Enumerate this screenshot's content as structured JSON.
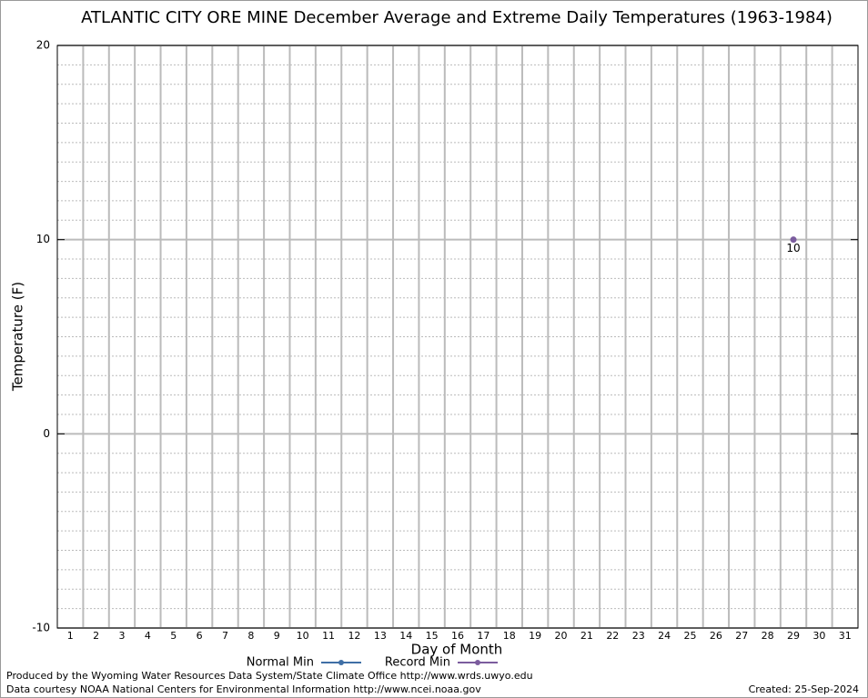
{
  "chart_data": {
    "type": "line",
    "title": "ATLANTIC CITY ORE MINE December Average and Extreme Daily Temperatures (1963-1984)",
    "x_label": "Day of Month",
    "y_label": "Temperature (F)",
    "categories": [
      "1",
      "2",
      "3",
      "4",
      "5",
      "6",
      "7",
      "8",
      "9",
      "10",
      "11",
      "12",
      "13",
      "14",
      "15",
      "16",
      "17",
      "18",
      "19",
      "20",
      "21",
      "22",
      "23",
      "24",
      "25",
      "26",
      "27",
      "28",
      "29",
      "30",
      "31"
    ],
    "series": [
      {
        "name": "Normal Min",
        "color": "#3f6fa6",
        "values": [
          null,
          null,
          null,
          null,
          null,
          null,
          null,
          null,
          null,
          null,
          null,
          null,
          null,
          null,
          null,
          null,
          null,
          null,
          null,
          null,
          null,
          null,
          null,
          null,
          null,
          null,
          null,
          null,
          null,
          null,
          null
        ]
      },
      {
        "name": "Record Min",
        "color": "#7b5c9e",
        "values": [
          null,
          null,
          null,
          null,
          null,
          null,
          null,
          null,
          null,
          null,
          null,
          null,
          null,
          null,
          null,
          null,
          null,
          null,
          null,
          null,
          null,
          null,
          null,
          null,
          null,
          null,
          null,
          null,
          10,
          null,
          null
        ]
      }
    ],
    "ylim": [
      -10,
      20
    ],
    "yticks": [
      -10,
      0,
      10,
      20
    ],
    "yminorticks": [
      -9,
      -8,
      -7,
      -6,
      -5,
      -4,
      -3,
      -2,
      -1,
      1,
      2,
      3,
      4,
      5,
      6,
      7,
      8,
      9,
      11,
      12,
      13,
      14,
      15,
      16,
      17,
      18,
      19
    ],
    "grid": true,
    "footer": {
      "line1": "Produced by the Wyoming Water Resources Data System/State Climate Office http://www.wrds.uwyo.edu",
      "line2": "Data courtesy NOAA National Centers for Environmental Information http://www.ncei.noaa.gov",
      "created": "Created:  25-Sep-2024"
    }
  }
}
